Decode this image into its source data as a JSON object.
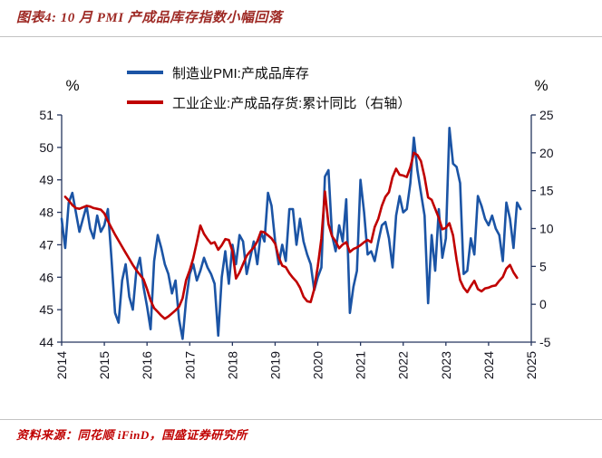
{
  "header": {
    "title": "图表4: 10 月 PMI 产成品库存指数小幅回落"
  },
  "footer": {
    "source": "资料来源：同花顺 iFinD，国盛证券研究所"
  },
  "colors": {
    "title_red": "#9E2A25",
    "source_red": "#C00000",
    "pmi_blue": "#1B54A5",
    "inventory_red": "#C00000",
    "axis_line": "#25355E"
  },
  "chart_data": {
    "type": "line",
    "title": "10 月 PMI 产成品库存指数小幅回落",
    "legend_position": "top",
    "grid": false,
    "left_axis": {
      "label": "%",
      "min": 44,
      "max": 51,
      "ticks": [
        44,
        45,
        46,
        47,
        48,
        49,
        50,
        51
      ]
    },
    "right_axis": {
      "label": "%",
      "min": -5,
      "max": 25,
      "ticks": [
        -5,
        0,
        5,
        10,
        15,
        20,
        25
      ]
    },
    "x_axis": {
      "min": 2014,
      "max": 2025,
      "ticks": [
        2014,
        2015,
        2016,
        2017,
        2018,
        2019,
        2020,
        2021,
        2022,
        2023,
        2024,
        2025
      ]
    },
    "series": [
      {
        "name": "制造业PMI:产成品库存",
        "axis": "left",
        "color": "#1B54A5",
        "start_year": 2014,
        "start_month": 1,
        "values": [
          47.8,
          46.9,
          48.3,
          48.6,
          48.0,
          47.4,
          47.8,
          48.2,
          47.5,
          47.2,
          47.9,
          47.4,
          47.6,
          48.1,
          46.6,
          44.9,
          44.6,
          45.9,
          46.4,
          45.4,
          45.0,
          46.2,
          46.6,
          45.7,
          45.1,
          44.4,
          46.5,
          47.3,
          46.9,
          46.4,
          46.1,
          45.5,
          45.9,
          44.7,
          44.1,
          45.3,
          46.1,
          46.4,
          45.9,
          46.2,
          46.6,
          46.3,
          46.1,
          45.8,
          44.2,
          46.0,
          46.8,
          45.8,
          47.0,
          46.4,
          47.3,
          47.1,
          46.1,
          46.6,
          47.1,
          46.4,
          47.4,
          47.1,
          48.6,
          48.2,
          47.1,
          46.4,
          47.0,
          46.5,
          48.1,
          48.1,
          47.0,
          47.8,
          47.1,
          46.7,
          46.4,
          45.6,
          46.0,
          46.3,
          49.1,
          49.3,
          47.3,
          46.8,
          47.6,
          47.1,
          48.4,
          44.9,
          45.7,
          46.2,
          49.0,
          48.0,
          46.7,
          46.8,
          46.5,
          47.1,
          47.6,
          47.7,
          47.2,
          46.3,
          47.9,
          48.5,
          48.0,
          48.1,
          48.9,
          50.3,
          49.3,
          48.6,
          47.9,
          45.2,
          47.3,
          46.2,
          48.1,
          46.6,
          47.2,
          50.6,
          49.5,
          49.4,
          48.9,
          46.1,
          46.2,
          47.2,
          46.7,
          48.5,
          48.2,
          47.8,
          47.6,
          47.9,
          47.5,
          47.3,
          46.5,
          48.3,
          47.8,
          46.9,
          48.3,
          48.1
        ]
      },
      {
        "name": "工业企业:产成品存货:累计同比（右轴）",
        "axis": "right",
        "color": "#C00000",
        "start_year": 2014,
        "start_month": 2,
        "values": [
          14.2,
          13.7,
          13.1,
          12.7,
          12.6,
          12.8,
          13.0,
          12.9,
          12.7,
          12.6,
          12.5,
          12.0,
          11.0,
          10.1,
          9.2,
          8.4,
          7.6,
          6.8,
          6.0,
          5.2,
          4.5,
          3.9,
          3.3,
          2.0,
          0.5,
          -0.5,
          -1.0,
          -1.5,
          -1.9,
          -1.6,
          -1.2,
          -0.8,
          -0.3,
          0.8,
          3.2,
          4.5,
          6.1,
          8.2,
          10.4,
          9.3,
          8.6,
          8.0,
          8.2,
          7.2,
          7.8,
          8.6,
          8.5,
          7.0,
          3.4,
          4.2,
          5.3,
          6.4,
          7.0,
          7.5,
          8.3,
          9.6,
          9.5,
          9.1,
          8.7,
          8.0,
          6.2,
          5.1,
          4.9,
          4.1,
          3.5,
          3.0,
          2.2,
          1.0,
          0.4,
          0.3,
          2.0,
          5.0,
          8.7,
          14.9,
          10.6,
          9.0,
          8.3,
          7.4,
          7.9,
          8.2,
          6.9,
          7.3,
          7.5,
          7.8,
          8.2,
          8.5,
          8.2,
          10.2,
          11.3,
          13.0,
          14.2,
          14.8,
          16.8,
          17.9,
          17.1,
          17.0,
          16.8,
          18.1,
          20.0,
          19.7,
          18.9,
          16.8,
          14.1,
          13.8,
          12.6,
          11.4,
          9.9,
          10.1,
          10.7,
          9.1,
          5.9,
          3.2,
          2.2,
          1.6,
          2.4,
          3.1,
          2.0,
          1.7,
          2.1,
          2.2,
          2.4,
          2.5,
          3.1,
          3.6,
          4.7,
          5.2,
          4.2,
          3.5
        ]
      }
    ]
  }
}
